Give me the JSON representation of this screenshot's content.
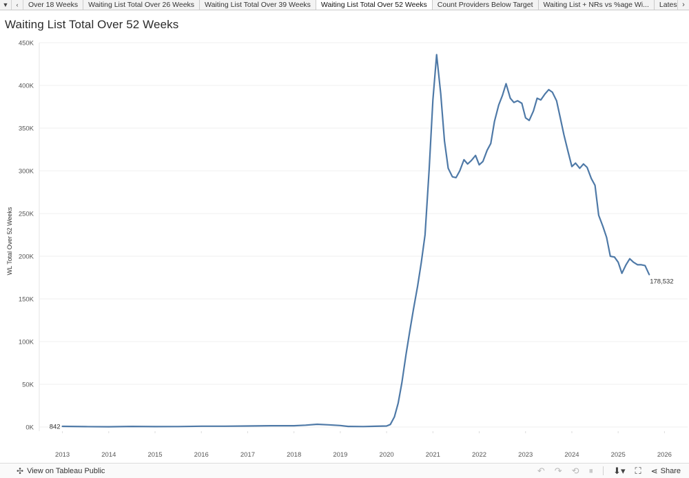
{
  "tabs": {
    "items": [
      {
        "label": "Over 18 Weeks",
        "active": false
      },
      {
        "label": "Waiting List Total Over 26 Weeks",
        "active": false
      },
      {
        "label": "Waiting List Total Over 39 Weeks",
        "active": false
      },
      {
        "label": "Waiting List Total Over 52 Weeks",
        "active": true
      },
      {
        "label": "Count Providers Below Target",
        "active": false
      },
      {
        "label": "Waiting List + NRs vs %age Wi...",
        "active": false
      },
      {
        "label": "Latest Month Mo",
        "active": false
      }
    ]
  },
  "sheet": {
    "title": "Waiting List Total Over 52 Weeks"
  },
  "chart_data": {
    "type": "line",
    "ylabel": "WL Total Over 52 Weeks",
    "ylim": [
      0,
      450000
    ],
    "yticks": [
      0,
      50000,
      100000,
      150000,
      200000,
      250000,
      300000,
      350000,
      400000,
      450000
    ],
    "ytick_labels": [
      "0K",
      "50K",
      "100K",
      "150K",
      "200K",
      "250K",
      "300K",
      "350K",
      "400K",
      "450K"
    ],
    "xlim": [
      2012.5,
      2026.5
    ],
    "xticks": [
      2013,
      2014,
      2015,
      2016,
      2017,
      2018,
      2019,
      2020,
      2021,
      2022,
      2023,
      2024,
      2025,
      2026
    ],
    "xtick_labels": [
      "2013",
      "2014",
      "2015",
      "2016",
      "2017",
      "2018",
      "2019",
      "2020",
      "2021",
      "2022",
      "2023",
      "2024",
      "2025",
      "2026"
    ],
    "grid": true,
    "line_color": "#4e79a7",
    "series": [
      {
        "x": [
          2013.0,
          2013.5,
          2014.0,
          2014.5,
          2015.0,
          2015.5,
          2016.0,
          2016.5,
          2017.0,
          2017.5,
          2018.0,
          2018.25,
          2018.5,
          2018.75,
          2019.0,
          2019.17,
          2019.5,
          2019.75,
          2020.0,
          2020.08,
          2020.17,
          2020.25,
          2020.33,
          2020.42,
          2020.5,
          2020.58,
          2020.67,
          2020.75,
          2020.83,
          2020.92,
          2021.0,
          2021.08,
          2021.17,
          2021.25,
          2021.33,
          2021.42,
          2021.5,
          2021.58,
          2021.67,
          2021.75,
          2021.83,
          2021.92,
          2022.0,
          2022.08,
          2022.17,
          2022.25,
          2022.33,
          2022.42,
          2022.5,
          2022.58,
          2022.67,
          2022.75,
          2022.83,
          2022.92,
          2023.0,
          2023.08,
          2023.17,
          2023.25,
          2023.33,
          2023.42,
          2023.5,
          2023.58,
          2023.67,
          2023.75,
          2023.83,
          2023.92,
          2024.0,
          2024.08,
          2024.17,
          2024.25,
          2024.33,
          2024.42,
          2024.5,
          2024.58,
          2024.67,
          2024.75,
          2024.83,
          2024.92,
          2025.0,
          2025.08,
          2025.17,
          2025.25,
          2025.33,
          2025.42,
          2025.5,
          2025.58,
          2025.67
        ],
        "y": [
          842,
          500,
          300,
          700,
          500,
          600,
          1000,
          1000,
          1200,
          1500,
          1500,
          2200,
          3200,
          2600,
          1800,
          700,
          600,
          900,
          1200,
          3000,
          12000,
          28000,
          52000,
          85000,
          112000,
          138000,
          165000,
          193000,
          225000,
          302000,
          383000,
          436000,
          390000,
          335000,
          303000,
          293000,
          292000,
          300000,
          313000,
          308000,
          312000,
          318000,
          307000,
          311000,
          324000,
          332000,
          358000,
          377000,
          388000,
          402000,
          385000,
          380000,
          382000,
          379000,
          362000,
          359000,
          370000,
          385000,
          383000,
          390000,
          395000,
          392000,
          382000,
          362000,
          342000,
          322000,
          305000,
          309000,
          303000,
          308000,
          304000,
          291000,
          283000,
          248000,
          235000,
          222000,
          200000,
          199000,
          193000,
          180000,
          190000,
          197000,
          193000,
          190000,
          190000,
          189000,
          178532
        ]
      }
    ],
    "annotations": [
      {
        "label": "842",
        "position": "first"
      },
      {
        "label": "178,532",
        "position": "last"
      }
    ]
  },
  "footer": {
    "tableau_link": "View on Tableau Public",
    "share_label": "Share"
  }
}
